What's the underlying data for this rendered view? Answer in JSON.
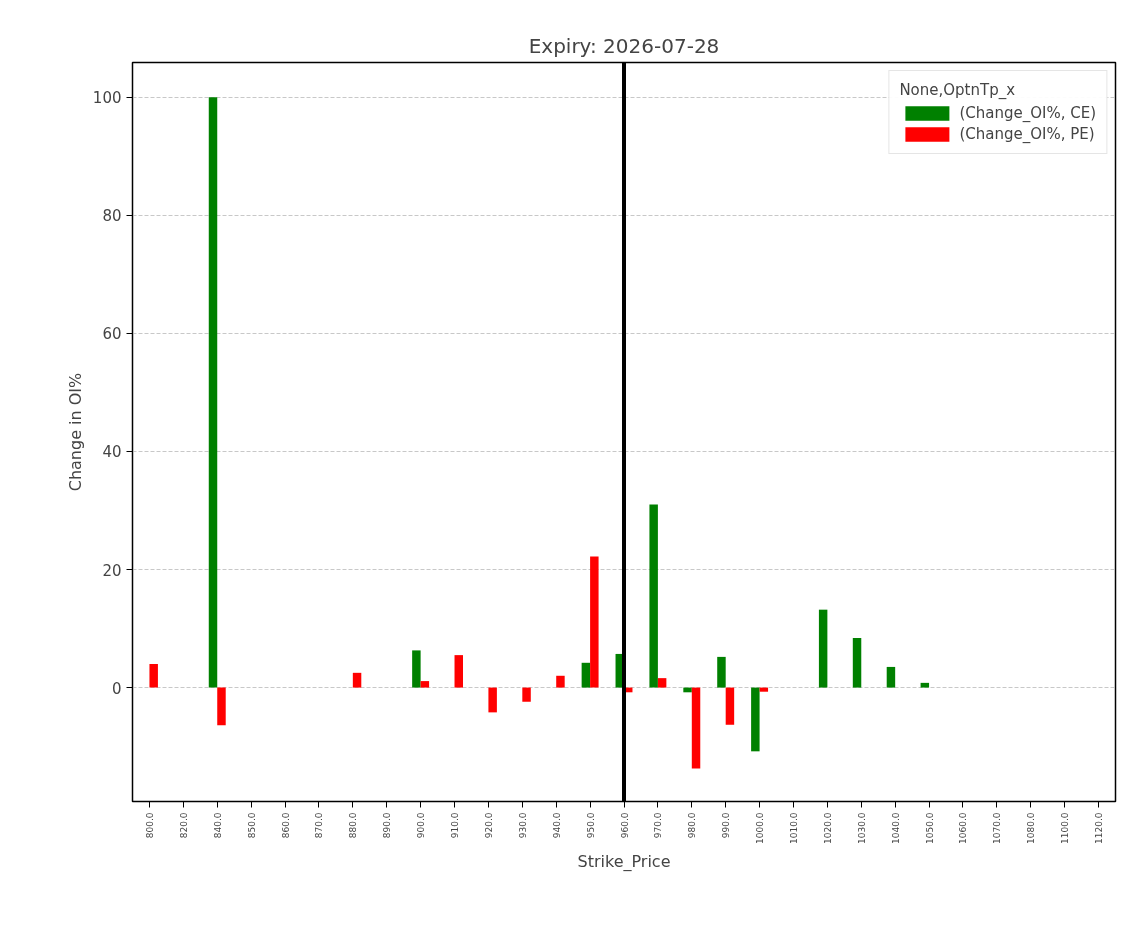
{
  "chart_data": {
    "type": "bar",
    "title": "Expiry: 2026-07-28",
    "xlabel": "Strike_Price",
    "ylabel": "Change in OI%",
    "legend_title": "None,OptnTp_x",
    "categories": [
      "800.0",
      "820.0",
      "840.0",
      "850.0",
      "860.0",
      "870.0",
      "880.0",
      "890.0",
      "900.0",
      "910.0",
      "920.0",
      "930.0",
      "940.0",
      "950.0",
      "960.0",
      "970.0",
      "980.0",
      "990.0",
      "1000.0",
      "1010.0",
      "1020.0",
      "1030.0",
      "1040.0",
      "1050.0",
      "1060.0",
      "1070.0",
      "1080.0",
      "1100.0",
      "1120.0"
    ],
    "series": [
      {
        "name": "(Change_OI%, CE)",
        "color": "#008000",
        "values": [
          null,
          null,
          100,
          null,
          null,
          null,
          null,
          null,
          6.3,
          null,
          null,
          null,
          null,
          4.2,
          5.7,
          31.0,
          -0.8,
          5.2,
          -10.8,
          null,
          13.2,
          8.4,
          3.5,
          0.8,
          null,
          null,
          null,
          null,
          null
        ]
      },
      {
        "name": "(Change_OI%, PE)",
        "color": "#ff0000",
        "values": [
          4.0,
          null,
          -6.4,
          null,
          null,
          null,
          2.5,
          null,
          1.1,
          5.5,
          -4.2,
          -2.4,
          2.0,
          22.2,
          -0.8,
          1.6,
          -13.7,
          -6.3,
          -0.7,
          null,
          null,
          null,
          null,
          null,
          null,
          null,
          null,
          null,
          null
        ]
      }
    ],
    "ylim": [
      -19.3,
      105.9
    ],
    "yticks": [
      0,
      20,
      40,
      60,
      80,
      100
    ],
    "grid": "y",
    "legend": "top right",
    "ref_lines": [
      {
        "axis": "x",
        "value": "960.0",
        "color": "#000000"
      }
    ]
  }
}
